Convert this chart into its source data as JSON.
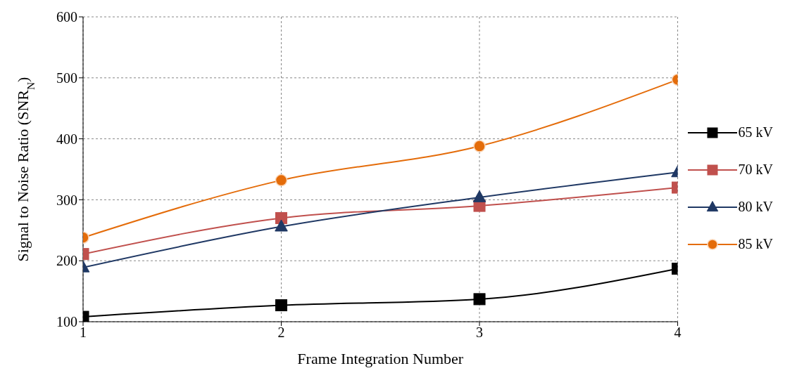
{
  "chart_data": {
    "type": "line",
    "xlabel": "Frame Integration Number",
    "ylabel": "Signal to Noise Ratio (SNR$_{N}$)",
    "x": [
      1,
      2,
      3,
      4
    ],
    "xlim": [
      1,
      4
    ],
    "xticks": [
      1,
      2,
      3,
      4
    ],
    "ylim": [
      100,
      600
    ],
    "yticks": [
      100,
      200,
      300,
      400,
      500,
      600
    ],
    "grid": true,
    "legend": "right",
    "series": [
      {
        "name": "65 kV",
        "color": "#000000",
        "marker": "square",
        "values": [
          108,
          127,
          137,
          187
        ]
      },
      {
        "name": "70 kV",
        "color": "#c0504d",
        "marker": "square",
        "values": [
          211,
          270,
          290,
          320
        ]
      },
      {
        "name": "80 kV",
        "color": "#1f3864",
        "marker": "triangle",
        "values": [
          189,
          256,
          304,
          345
        ]
      },
      {
        "name": "85 kV",
        "color": "#e46c0a",
        "marker": "circle",
        "values": [
          238,
          332,
          388,
          497
        ]
      }
    ]
  }
}
